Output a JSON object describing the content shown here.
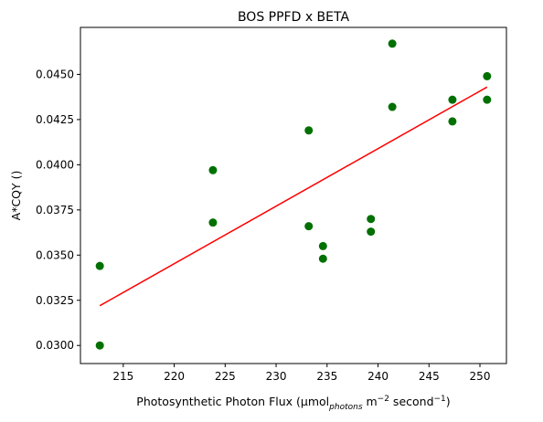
{
  "chart_data": {
    "type": "scatter",
    "title": "BOS PPFD x BETA",
    "xlabel": {
      "main": "Photosynthetic Photon Flux (μmol",
      "sub": "photons",
      "m_part": " m",
      "m_exp": "−2",
      "sec_part": " second",
      "sec_exp": "−1",
      "close": ")"
    },
    "ylabel": "A*CQY ()",
    "xlim": [
      210.8,
      252.6
    ],
    "ylim": [
      0.029,
      0.0476
    ],
    "xticks": [
      215,
      220,
      225,
      230,
      235,
      240,
      245,
      250
    ],
    "yticks": [
      0.03,
      0.0325,
      0.035,
      0.0375,
      0.04,
      0.0425,
      0.045
    ],
    "ytick_labels": [
      "0.0300",
      "0.0325",
      "0.0350",
      "0.0375",
      "0.0400",
      "0.0425",
      "0.0450"
    ],
    "grid": false,
    "point_color": "#007000",
    "line_color": "#ff0000",
    "points": [
      {
        "x": 212.7,
        "y": 0.0344
      },
      {
        "x": 212.7,
        "y": 0.03
      },
      {
        "x": 223.8,
        "y": 0.0397
      },
      {
        "x": 223.8,
        "y": 0.0368
      },
      {
        "x": 233.2,
        "y": 0.0419
      },
      {
        "x": 233.2,
        "y": 0.0366
      },
      {
        "x": 234.6,
        "y": 0.0355
      },
      {
        "x": 234.6,
        "y": 0.0348
      },
      {
        "x": 239.3,
        "y": 0.037
      },
      {
        "x": 239.3,
        "y": 0.0363
      },
      {
        "x": 241.4,
        "y": 0.0467
      },
      {
        "x": 241.4,
        "y": 0.0432
      },
      {
        "x": 247.3,
        "y": 0.0436
      },
      {
        "x": 247.3,
        "y": 0.0424
      },
      {
        "x": 250.7,
        "y": 0.0449
      },
      {
        "x": 250.7,
        "y": 0.0436
      }
    ],
    "fit_line": {
      "x": [
        212.7,
        250.7
      ],
      "y": [
        0.0322,
        0.0443
      ]
    }
  }
}
